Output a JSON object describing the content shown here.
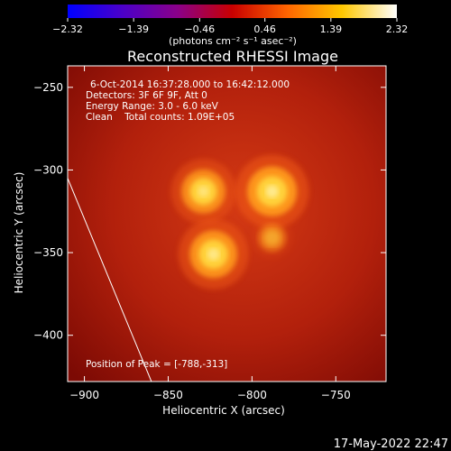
{
  "chart_data": {
    "type": "heatmap",
    "title": "Reconstructed RHESSI Image",
    "xlabel": "Heliocentric X (arcsec)",
    "ylabel": "Heliocentric Y (arcsec)",
    "xlim": [
      -910,
      -720
    ],
    "ylim": [
      -428,
      -237
    ],
    "x_ticks": [
      -900,
      -850,
      -800,
      -750
    ],
    "x_tick_labels": [
      "−900",
      "−850",
      "−800",
      "−750"
    ],
    "y_ticks": [
      -250,
      -300,
      -350,
      -400
    ],
    "y_tick_labels": [
      "−250",
      "−300",
      "−350",
      "−400"
    ],
    "colorbar": {
      "range": [
        -2.32,
        2.32
      ],
      "ticks": [
        -2.32,
        -1.39,
        -0.46,
        0.46,
        1.39,
        2.32
      ],
      "tick_labels": [
        "−2.32",
        "−1.39",
        "−0.46",
        "0.46",
        "1.39",
        "2.32"
      ],
      "units_label": "(photons cm⁻² s⁻¹ asec⁻²)",
      "colormap": [
        "#0000ff",
        "#4b00c8",
        "#8a008a",
        "#c80000",
        "#ff6400",
        "#ffc800",
        "#ffffff"
      ]
    },
    "annotations": [
      "6-Oct-2014 16:37:28.000 to 16:42:12.000",
      "Detectors: 3F 6F 9F, Att 0",
      "Energy Range: 3.0 - 6.0 keV",
      "Clean    Total counts: 1.09E+05"
    ],
    "peak_text": "Position of Peak = [-788,-313]",
    "sources": [
      {
        "x": -829,
        "y": -313,
        "intensity": 0.8
      },
      {
        "x": -788,
        "y": -313,
        "intensity": 1.0
      },
      {
        "x": -823,
        "y": -351,
        "intensity": 0.92
      },
      {
        "x": -788,
        "y": -341,
        "intensity": 0.25
      }
    ],
    "limb_line": [
      [
        -910,
        -305
      ],
      [
        -860,
        -428
      ]
    ],
    "timestamp": "17-May-2022 22:47"
  }
}
